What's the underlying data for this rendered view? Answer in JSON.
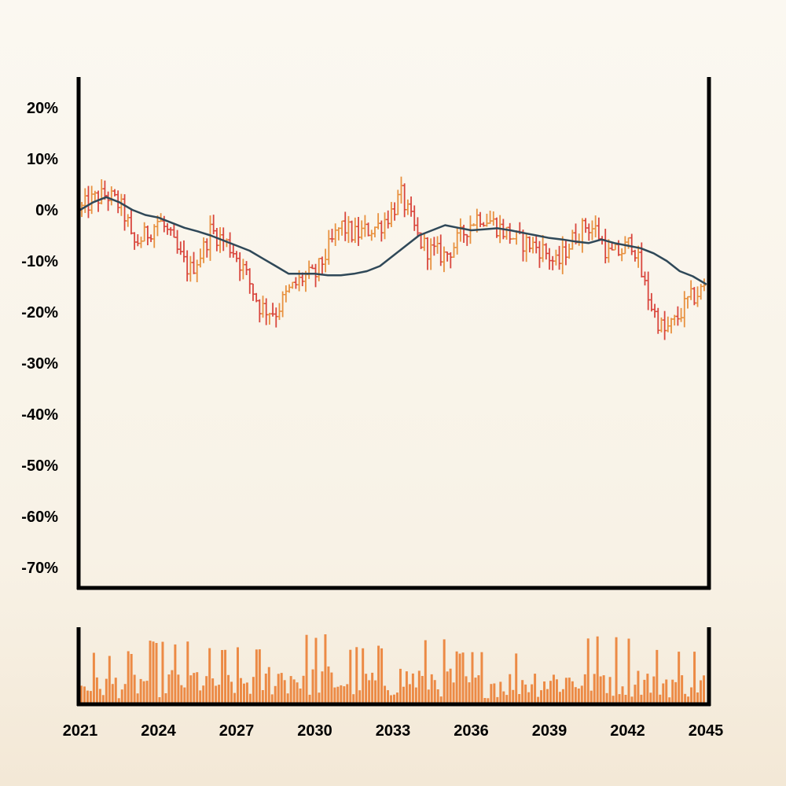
{
  "chart_data": {
    "type": "ohlc",
    "title": "",
    "xlabel": "",
    "ylabel": "",
    "ylim": [
      -75,
      25
    ],
    "y_ticks": [
      "20%",
      "10%",
      "0%",
      "-10%",
      "-20%",
      "-30%",
      "-40%",
      "-50%",
      "-60%",
      "-70%"
    ],
    "y_tick_values": [
      20,
      10,
      0,
      -10,
      -20,
      -30,
      -40,
      -50,
      -60,
      -70
    ],
    "xlim": [
      2021,
      2045
    ],
    "x_ticks": [
      "2021",
      "2024",
      "2027",
      "2030",
      "2033",
      "2036",
      "2039",
      "2042",
      "2045"
    ],
    "x_tick_values": [
      2021,
      2024,
      2027,
      2030,
      2033,
      2036,
      2039,
      2042,
      2045
    ],
    "colors": {
      "up": "#e8913f",
      "down": "#d9463d",
      "ma": "#2f4858",
      "volume": "#ec8a45",
      "axis": "#000000"
    },
    "grid": false,
    "legend": "none",
    "price_anchors": {
      "x": [
        2021.0,
        2021.5,
        2022.0,
        2022.5,
        2022.8,
        2023.0,
        2023.5,
        2024.0,
        2024.3,
        2024.8,
        2025.2,
        2025.7,
        2026.0,
        2026.5,
        2026.9,
        2027.3,
        2027.9,
        2028.5,
        2029.0,
        2029.6,
        2030.0,
        2030.3,
        2030.6,
        2031.0,
        2031.5,
        2032.0,
        2032.5,
        2033.0,
        2033.3,
        2033.6,
        2034.0,
        2034.4,
        2035.0,
        2035.5,
        2035.9,
        2036.3,
        2036.7,
        2037.2,
        2037.8,
        2038.4,
        2038.8,
        2039.3,
        2039.6,
        2040.0,
        2040.4,
        2040.8,
        2041.3,
        2041.8,
        2042.2,
        2042.6,
        2043.0,
        2043.4,
        2043.8,
        2044.3,
        2045.0
      ],
      "y": [
        0,
        2,
        3,
        1,
        -2,
        -7,
        -5,
        -2,
        -4,
        -9,
        -12,
        -8,
        -4,
        -6,
        -8,
        -12,
        -19,
        -20,
        -16,
        -13,
        -13,
        -10,
        -7,
        -3,
        -5,
        -4,
        -3,
        0,
        3,
        -1,
        -6,
        -8,
        -9,
        -6,
        -3,
        -1,
        -2,
        -4,
        -6,
        -7,
        -8,
        -11,
        -8,
        -5,
        -3,
        -4,
        -9,
        -8,
        -6,
        -14,
        -20,
        -24,
        -22,
        -18,
        -15
      ]
    },
    "ma_points": {
      "x": [
        2021.0,
        2021.5,
        2022.0,
        2022.5,
        2023.0,
        2023.5,
        2024.0,
        2024.5,
        2025.0,
        2025.5,
        2026.0,
        2026.5,
        2027.0,
        2027.5,
        2028.0,
        2028.5,
        2029.0,
        2029.5,
        2030.0,
        2030.5,
        2031.0,
        2031.5,
        2032.0,
        2032.5,
        2033.0,
        2033.5,
        2034.0,
        2034.5,
        2035.0,
        2035.5,
        2036.0,
        2036.5,
        2037.0,
        2037.5,
        2038.0,
        2038.5,
        2039.0,
        2039.5,
        2040.0,
        2040.5,
        2041.0,
        2041.5,
        2042.0,
        2042.5,
        2043.0,
        2043.5,
        2044.0,
        2044.5,
        2045.0
      ],
      "y": [
        0,
        1.5,
        2.5,
        1.5,
        0,
        -1,
        -1.5,
        -2.5,
        -3.5,
        -4.2,
        -5,
        -6,
        -7,
        -8,
        -9.5,
        -11,
        -12.5,
        -12.5,
        -12.5,
        -12.8,
        -12.8,
        -12.5,
        -12,
        -11,
        -9,
        -7,
        -5,
        -4,
        -3,
        -3.5,
        -4,
        -3.8,
        -3.6,
        -4,
        -4.5,
        -5,
        -5.5,
        -5.8,
        -6.2,
        -6.5,
        -5.8,
        -6.5,
        -7,
        -7.5,
        -8.5,
        -10,
        -12,
        -13,
        -14.5
      ]
    },
    "volume": {
      "type": "bar",
      "x_range": [
        2021,
        2045
      ],
      "bar_count": 200,
      "relative_level": [
        0.3,
        0.55,
        0.4,
        0.75,
        0.45,
        0.6,
        0.35,
        0.5,
        0.7,
        0.4
      ]
    }
  }
}
